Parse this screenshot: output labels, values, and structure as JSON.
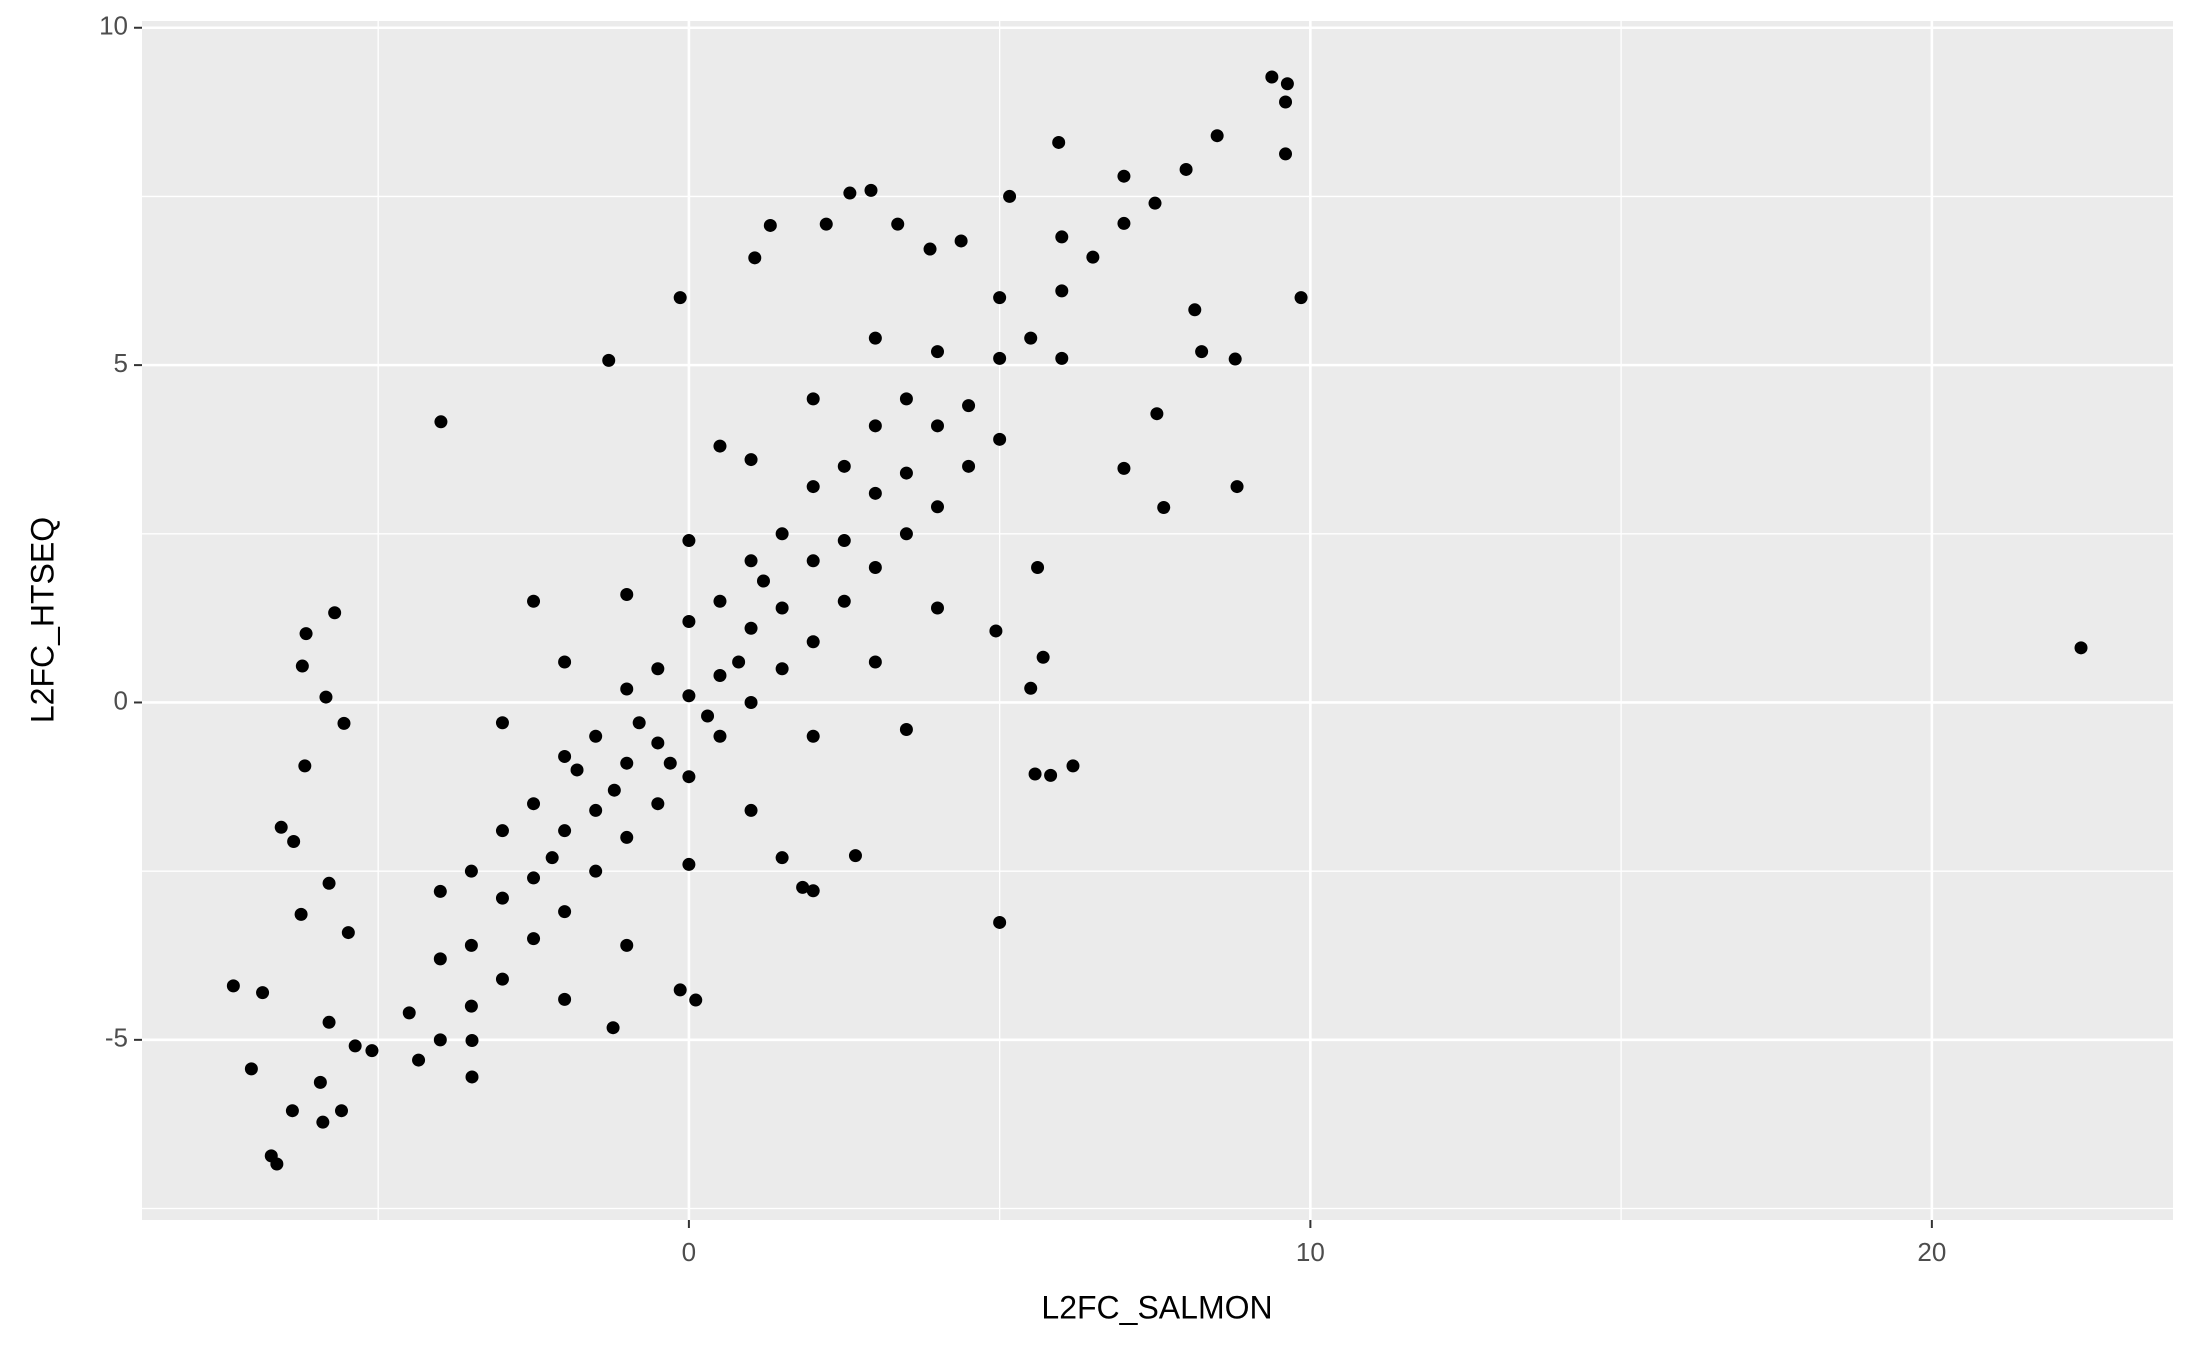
{
  "chart_data": {
    "type": "scatter",
    "xlabel": "L2FC_SALMON",
    "ylabel": "L2FC_HTSEQ",
    "xlim": [
      -8.8,
      23.88
    ],
    "ylim": [
      -7.67,
      10.1
    ],
    "xticks": [
      0,
      10,
      20
    ],
    "yticks": [
      -5,
      0,
      5,
      10
    ],
    "x_minor_grid": [
      -5,
      5,
      15
    ],
    "y_minor_grid": [
      -7.5,
      -2.5,
      2.5,
      7.5
    ],
    "grid": true,
    "color": "#000000",
    "x": [
      22.4,
      9.38,
      9.63,
      9.6,
      9.6,
      9.85,
      8.82,
      8.79,
      8.25,
      8.14,
      7.64,
      7.53,
      7.0,
      5.95,
      5.16,
      5.0,
      5.57,
      6.18,
      5.82,
      5.7,
      5.5,
      5.61,
      4.94,
      -3.99,
      -1.29,
      -0.14,
      1.06,
      1.31,
      2.21,
      2.59,
      2.93,
      -5.7,
      -6.16,
      -6.22,
      -5.84,
      -6.18,
      -5.55,
      -7.33,
      -6.86,
      -7.04,
      -6.72,
      -6.63,
      -6.38,
      -5.89,
      -5.59,
      -5.93,
      -5.79,
      -6.56,
      -6.36,
      -5.79,
      -6.24,
      -5.48,
      -3.49,
      -3.49,
      -4.35,
      -1.22,
      0.11,
      -0.14,
      -5.37,
      -5.1,
      2.0,
      1.83,
      2.68,
      3.36,
      3.88,
      4.38,
      -4.5,
      -4,
      -3.5,
      -3,
      -2.5,
      -2,
      -1.5,
      -1,
      -0.5,
      0,
      0.5,
      1,
      1.5,
      2,
      2.5,
      3,
      3.5,
      4,
      4.5,
      5,
      5.5,
      6,
      6.5,
      7,
      7.5,
      8,
      8.5,
      -4,
      -3,
      -2,
      -1,
      0,
      1,
      2,
      3,
      4,
      5,
      6,
      7,
      -4,
      -3,
      -2,
      -1,
      0,
      1,
      2,
      3,
      4,
      5,
      6,
      -3,
      -2,
      -1,
      0,
      1,
      2,
      3,
      -2.5,
      0.5,
      -2,
      -1,
      0,
      1,
      2,
      3,
      4,
      1.5,
      3.5,
      -3.5,
      -2.5,
      -1.5,
      -0.5,
      0.5,
      1.5,
      2.5,
      3.5,
      -3.5,
      -2.5,
      -1.5,
      -0.5,
      0.5,
      1.5,
      2.5,
      3.5,
      4.5,
      -1.2,
      -0.8,
      0.3,
      0.8,
      -0.3,
      1.2,
      -1.8,
      -2.2
    ],
    "y": [
      0.81,
      9.27,
      9.17,
      8.9,
      8.13,
      6.0,
      3.2,
      5.09,
      5.2,
      5.82,
      2.89,
      4.28,
      3.47,
      8.3,
      7.5,
      -3.26,
      -1.06,
      -0.94,
      -1.08,
      0.67,
      0.21,
      2.0,
      1.06,
      4.16,
      5.07,
      6.0,
      6.59,
      7.07,
      7.09,
      7.55,
      7.59,
      1.33,
      1.02,
      0.54,
      0.08,
      -0.94,
      -0.31,
      -4.2,
      -4.3,
      -5.43,
      -6.72,
      -6.84,
      -6.05,
      -6.22,
      -6.05,
      -5.63,
      -4.74,
      -1.85,
      -2.06,
      -2.68,
      -3.14,
      -3.41,
      -5.01,
      -5.55,
      -5.3,
      -4.82,
      -4.41,
      -4.26,
      -5.09,
      -5.16,
      -2.79,
      -2.74,
      -2.27,
      7.09,
      6.72,
      6.84,
      -4.6,
      -3.8,
      -3.6,
      -2.9,
      -2.6,
      -1.9,
      -1.6,
      -0.9,
      -0.6,
      0.1,
      0.4,
      1.1,
      1.4,
      2.1,
      2.4,
      3.1,
      3.4,
      4.1,
      4.4,
      5.1,
      5.4,
      6.1,
      6.6,
      7.1,
      7.4,
      7.9,
      8.4,
      -2.8,
      -1.9,
      -0.8,
      0.2,
      1.2,
      2.1,
      3.2,
      4.1,
      5.2,
      6.0,
      6.9,
      7.8,
      -5,
      -4.1,
      -3.1,
      -2,
      -1.1,
      0,
      0.9,
      2,
      2.9,
      3.9,
      5.1,
      -0.3,
      0.6,
      1.6,
      2.4,
      3.6,
      4.5,
      5.4,
      1.5,
      3.8,
      -4.4,
      -3.6,
      -2.4,
      -1.6,
      -0.5,
      0.6,
      1.4,
      -2.3,
      -0.4,
      -2.5,
      -1.5,
      -0.5,
      0.5,
      1.5,
      2.5,
      3.5,
      4.5,
      -4.5,
      -3.5,
      -2.5,
      -1.5,
      -0.5,
      0.5,
      1.5,
      2.5,
      3.5,
      -1.3,
      -0.3,
      -0.2,
      0.6,
      -0.9,
      1.8,
      -1.0,
      -2.3
    ]
  }
}
